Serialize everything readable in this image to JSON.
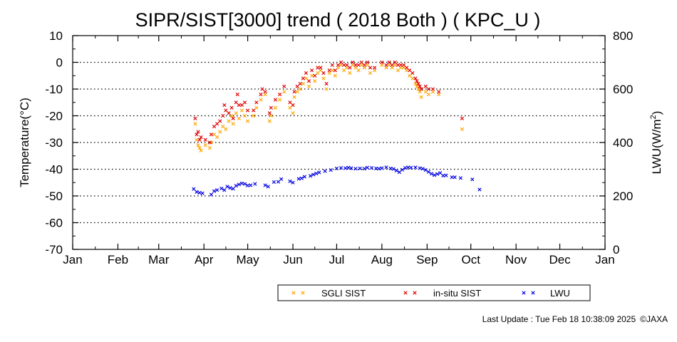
{
  "chart_data": {
    "type": "scatter",
    "title": "SIPR/SIST[3000] trend ( 2018 Both ) ( KPC_U )",
    "xlabel": "",
    "ylabel_left": "Temperature(°C)",
    "ylabel_right_base": "LWU(W/m",
    "ylabel_right_sup": "2",
    "ylabel_right_end": ")",
    "x_unit": "day of year 2018",
    "xlim": [
      1,
      366
    ],
    "ylim_left": [
      -70,
      10
    ],
    "ylim_right": [
      0,
      800
    ],
    "left_ticks": [
      "10",
      "0",
      "-10",
      "-20",
      "-30",
      "-40",
      "-50",
      "-60",
      "-70"
    ],
    "right_ticks": [
      "800",
      "600",
      "400",
      "200",
      "0"
    ],
    "month_labels": [
      "Jan",
      "Feb",
      "Mar",
      "Apr",
      "May",
      "Jun",
      "Jul",
      "Aug",
      "Sep",
      "Oct",
      "Nov",
      "Dec",
      "Jan"
    ],
    "grid": "horizontal dotted",
    "legend_position": "bottom",
    "series": [
      {
        "name": "SGLI SIST",
        "axis": "left",
        "color": "#ffa500",
        "points": [
          [
            85,
            -23
          ],
          [
            86,
            -29
          ],
          [
            87,
            -31
          ],
          [
            88,
            -32
          ],
          [
            89,
            -33
          ],
          [
            92,
            -31
          ],
          [
            95,
            -32
          ],
          [
            96,
            -30
          ],
          [
            98,
            -27
          ],
          [
            100,
            -28
          ],
          [
            102,
            -26
          ],
          [
            104,
            -24
          ],
          [
            106,
            -25
          ],
          [
            108,
            -22
          ],
          [
            110,
            -20
          ],
          [
            111,
            -23
          ],
          [
            113,
            -19
          ],
          [
            115,
            -21
          ],
          [
            117,
            -18
          ],
          [
            119,
            -20
          ],
          [
            121,
            -22
          ],
          [
            125,
            -20
          ],
          [
            127,
            -17
          ],
          [
            130,
            -14
          ],
          [
            133,
            -12
          ],
          [
            136,
            -22
          ],
          [
            137,
            -20
          ],
          [
            140,
            -17
          ],
          [
            143,
            -14
          ],
          [
            146,
            -11
          ],
          [
            150,
            -17
          ],
          [
            152,
            -19
          ],
          [
            153,
            -13
          ],
          [
            155,
            -11
          ],
          [
            157,
            -10
          ],
          [
            159,
            -8
          ],
          [
            161,
            -6
          ],
          [
            163,
            -9
          ],
          [
            165,
            -5
          ],
          [
            167,
            -7
          ],
          [
            169,
            -4
          ],
          [
            171,
            -3
          ],
          [
            173,
            -6
          ],
          [
            175,
            -10
          ],
          [
            177,
            -4
          ],
          [
            179,
            -3
          ],
          [
            181,
            -5
          ],
          [
            183,
            -2
          ],
          [
            185,
            -1
          ],
          [
            187,
            -3
          ],
          [
            189,
            -2
          ],
          [
            191,
            -4
          ],
          [
            193,
            -1
          ],
          [
            195,
            -2
          ],
          [
            197,
            -3
          ],
          [
            199,
            -1
          ],
          [
            201,
            -2
          ],
          [
            203,
            -1
          ],
          [
            205,
            -4
          ],
          [
            208,
            -3
          ],
          [
            213,
            -1
          ],
          [
            216,
            -2
          ],
          [
            218,
            -1
          ],
          [
            220,
            -2
          ],
          [
            222,
            -1
          ],
          [
            224,
            -3
          ],
          [
            226,
            -2
          ],
          [
            228,
            -2
          ],
          [
            230,
            -3
          ],
          [
            232,
            -5
          ],
          [
            234,
            -6
          ],
          [
            236,
            -8
          ],
          [
            237,
            -9
          ],
          [
            238,
            -10
          ],
          [
            239,
            -11
          ],
          [
            240,
            -13
          ],
          [
            243,
            -11
          ],
          [
            245,
            -12
          ],
          [
            248,
            -11
          ],
          [
            252,
            -12
          ],
          [
            268,
            -25
          ]
        ]
      },
      {
        "name": "in-situ SIST",
        "axis": "left",
        "color": "#e00000",
        "points": [
          [
            85,
            -21
          ],
          [
            86,
            -27
          ],
          [
            87,
            -26
          ],
          [
            88,
            -29
          ],
          [
            89,
            -28
          ],
          [
            92,
            -29
          ],
          [
            95,
            -30
          ],
          [
            96,
            -27
          ],
          [
            98,
            -24
          ],
          [
            100,
            -23
          ],
          [
            102,
            -22
          ],
          [
            104,
            -20
          ],
          [
            105,
            -16
          ],
          [
            106,
            -18
          ],
          [
            108,
            -19
          ],
          [
            110,
            -17
          ],
          [
            111,
            -21
          ],
          [
            113,
            -15
          ],
          [
            114,
            -12
          ],
          [
            115,
            -16
          ],
          [
            117,
            -16
          ],
          [
            119,
            -15
          ],
          [
            121,
            -18
          ],
          [
            125,
            -18
          ],
          [
            127,
            -15
          ],
          [
            130,
            -12
          ],
          [
            131,
            -10
          ],
          [
            133,
            -11
          ],
          [
            136,
            -19
          ],
          [
            137,
            -17
          ],
          [
            140,
            -14
          ],
          [
            143,
            -12
          ],
          [
            146,
            -9
          ],
          [
            150,
            -15
          ],
          [
            152,
            -16
          ],
          [
            153,
            -11
          ],
          [
            155,
            -9
          ],
          [
            157,
            -8
          ],
          [
            159,
            -6
          ],
          [
            161,
            -4
          ],
          [
            163,
            -7
          ],
          [
            165,
            -3
          ],
          [
            167,
            -5
          ],
          [
            169,
            -2
          ],
          [
            171,
            -2
          ],
          [
            173,
            -4
          ],
          [
            175,
            -8
          ],
          [
            177,
            -3
          ],
          [
            179,
            -1
          ],
          [
            181,
            -3
          ],
          [
            183,
            -1
          ],
          [
            185,
            0
          ],
          [
            187,
            -1
          ],
          [
            189,
            -1
          ],
          [
            191,
            -2
          ],
          [
            193,
            0
          ],
          [
            195,
            -1
          ],
          [
            197,
            -1
          ],
          [
            199,
            0
          ],
          [
            201,
            -1
          ],
          [
            203,
            0
          ],
          [
            205,
            -2
          ],
          [
            208,
            -2
          ],
          [
            213,
            0
          ],
          [
            216,
            -1
          ],
          [
            218,
            0
          ],
          [
            220,
            -1
          ],
          [
            222,
            0
          ],
          [
            224,
            -1
          ],
          [
            226,
            -1
          ],
          [
            228,
            -1
          ],
          [
            230,
            -2
          ],
          [
            232,
            -3
          ],
          [
            234,
            -4
          ],
          [
            236,
            -6
          ],
          [
            237,
            -7
          ],
          [
            238,
            -8
          ],
          [
            239,
            -9
          ],
          [
            240,
            -10
          ],
          [
            243,
            -9
          ],
          [
            245,
            -10
          ],
          [
            248,
            -10
          ],
          [
            252,
            -11
          ],
          [
            268,
            -21
          ]
        ]
      },
      {
        "name": "LWU",
        "axis": "right",
        "color": "#0000e0",
        "points": [
          [
            84,
            226
          ],
          [
            86,
            215
          ],
          [
            88,
            212
          ],
          [
            90,
            210
          ],
          [
            96,
            205
          ],
          [
            98,
            218
          ],
          [
            100,
            222
          ],
          [
            103,
            228
          ],
          [
            105,
            222
          ],
          [
            107,
            235
          ],
          [
            109,
            230
          ],
          [
            111,
            227
          ],
          [
            113,
            238
          ],
          [
            115,
            243
          ],
          [
            117,
            247
          ],
          [
            119,
            245
          ],
          [
            121,
            239
          ],
          [
            123,
            240
          ],
          [
            126,
            245
          ],
          [
            133,
            240
          ],
          [
            135,
            235
          ],
          [
            139,
            252
          ],
          [
            142,
            253
          ],
          [
            144,
            263
          ],
          [
            150,
            255
          ],
          [
            152,
            250
          ],
          [
            156,
            264
          ],
          [
            158,
            266
          ],
          [
            160,
            272
          ],
          [
            164,
            275
          ],
          [
            166,
            280
          ],
          [
            168,
            284
          ],
          [
            170,
            288
          ],
          [
            174,
            293
          ],
          [
            178,
            297
          ],
          [
            182,
            303
          ],
          [
            185,
            305
          ],
          [
            188,
            304
          ],
          [
            190,
            306
          ],
          [
            192,
            304
          ],
          [
            195,
            302
          ],
          [
            198,
            303
          ],
          [
            201,
            302
          ],
          [
            203,
            306
          ],
          [
            206,
            305
          ],
          [
            209,
            303
          ],
          [
            211,
            302
          ],
          [
            213,
            304
          ],
          [
            216,
            307
          ],
          [
            219,
            303
          ],
          [
            221,
            301
          ],
          [
            223,
            295
          ],
          [
            225,
            289
          ],
          [
            227,
            298
          ],
          [
            229,
            305
          ],
          [
            231,
            307
          ],
          [
            233,
            306
          ],
          [
            236,
            307
          ],
          [
            239,
            304
          ],
          [
            241,
            302
          ],
          [
            243,
            297
          ],
          [
            245,
            290
          ],
          [
            247,
            283
          ],
          [
            249,
            278
          ],
          [
            251,
            282
          ],
          [
            253,
            286
          ],
          [
            255,
            276
          ],
          [
            257,
            277
          ],
          [
            261,
            270
          ],
          [
            263,
            270
          ],
          [
            267,
            267
          ],
          [
            275,
            262
          ],
          [
            280,
            224
          ]
        ]
      }
    ]
  },
  "footer": {
    "last_update": "Last Update : Tue Feb 18 10:38:09 2025",
    "credit": "©JAXA"
  }
}
